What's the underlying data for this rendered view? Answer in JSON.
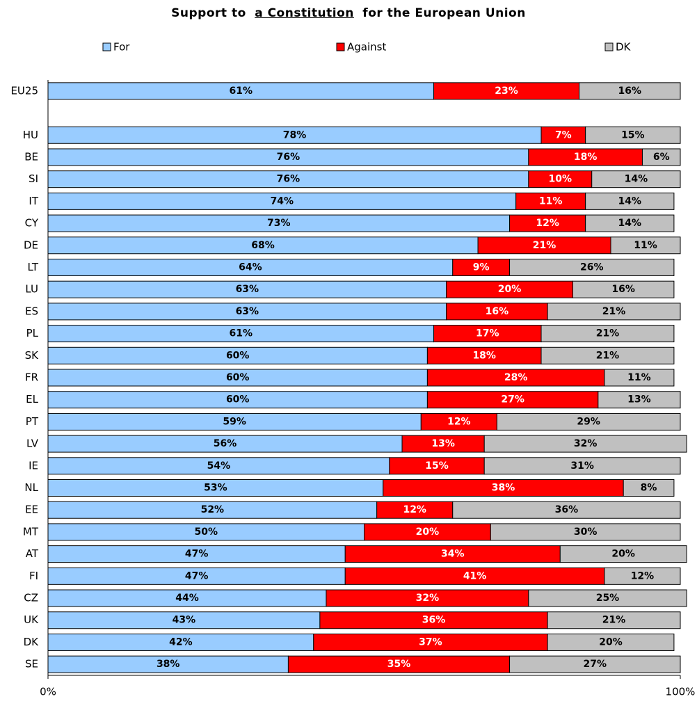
{
  "chart_data": {
    "type": "stacked_barh",
    "title": [
      {
        "text": "Support to"
      },
      {
        "text": "a Constitution",
        "underline": true
      },
      {
        "text": "for the European Union"
      }
    ],
    "categories": [
      "EU25",
      null,
      "HU",
      "BE",
      "SI",
      "IT",
      "CY",
      "DE",
      "LT",
      "LU",
      "ES",
      "PL",
      "SK",
      "FR",
      "EL",
      "PT",
      "LV",
      "IE",
      "NL",
      "EE",
      "MT",
      "AT",
      "FI",
      "CZ",
      "UK",
      "DK",
      "SE"
    ],
    "series": [
      {
        "name": "For",
        "color": "#99ccff",
        "label_color": "#000000",
        "values": [
          61,
          null,
          78,
          76,
          76,
          74,
          73,
          68,
          64,
          63,
          63,
          61,
          60,
          60,
          60,
          59,
          56,
          54,
          53,
          52,
          50,
          47,
          47,
          44,
          43,
          42,
          38
        ],
        "value_labels": [
          "61%",
          null,
          "78%",
          "76%",
          "76%",
          "74%",
          "73%",
          "68%",
          "64%",
          "63%",
          "63%",
          "61%",
          "60%",
          "60%",
          "60%",
          "59%",
          "56%",
          "54%",
          "53%",
          "52%",
          "50%",
          "47%",
          "47%",
          "44%",
          "43%",
          "42%",
          "38%"
        ]
      },
      {
        "name": "Against",
        "color": "#ff0000",
        "label_color": "#ffffff",
        "values": [
          23,
          null,
          7,
          18,
          10,
          11,
          12,
          21,
          9,
          20,
          16,
          17,
          18,
          28,
          27,
          12,
          13,
          15,
          38,
          12,
          20,
          34,
          41,
          32,
          36,
          37,
          35
        ],
        "value_labels": [
          "23%",
          null,
          "7%",
          "18%",
          "10%",
          "11%",
          "12%",
          "21%",
          "9%",
          "20%",
          "16%",
          "17%",
          "18%",
          "28%",
          "27%",
          "12%",
          "13%",
          "15%",
          "38%",
          "12%",
          "20%",
          "34%",
          "41%",
          "32%",
          "36%",
          "37%",
          "35%"
        ]
      },
      {
        "name": "DK",
        "color": "#c0c0c0",
        "label_color": "#000000",
        "values": [
          16,
          null,
          15,
          6,
          14,
          14,
          14,
          11,
          26,
          16,
          21,
          21,
          21,
          11,
          13,
          29,
          32,
          31,
          8,
          36,
          30,
          20,
          12,
          25,
          21,
          20,
          27
        ],
        "value_labels": [
          "16%",
          null,
          "15%",
          "6%",
          "14%",
          "14%",
          "14%",
          "11%",
          "26%",
          "16%",
          "21%",
          "21%",
          "21%",
          "11%",
          "13%",
          "29%",
          "32%",
          "31%",
          "8%",
          "36%",
          "30%",
          "20%",
          "12%",
          "25%",
          "21%",
          "20%",
          "27%"
        ]
      }
    ],
    "xlim": [
      0,
      100
    ],
    "xticks": [
      {
        "value": 0,
        "label": "0%"
      },
      {
        "value": 100,
        "label": "100%"
      }
    ],
    "grid": false
  }
}
